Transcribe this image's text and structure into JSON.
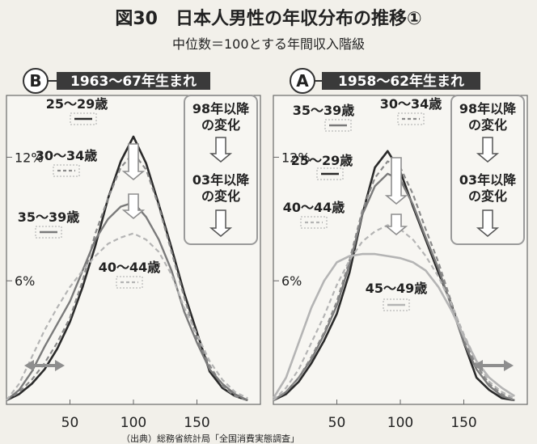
{
  "figure": {
    "title": "図30　日本人男性の年収分布の推移①",
    "subtitle": "中位数＝100とする年間収入階級",
    "footer": "（出典）総務省統計局「全国消費実態調査」"
  },
  "colors": {
    "background": "#f2f0ea",
    "dark_line": "#2a2a2a",
    "gray_line": "#7a7a7a",
    "dashed_line": "#8a8a8a",
    "light_line": "#b4b4b4",
    "badge": "#3a3a3a",
    "arrow_gray": "#8e8e8e"
  },
  "icons": [
    "badge-circle-b-icon",
    "badge-circle-a-icon",
    "down-arrow-icon",
    "double-arrow-icon",
    "legend-swatch-icon"
  ],
  "chart_data": [
    {
      "type": "line",
      "panel": "B",
      "cohort_label": "1963〜67年生まれ",
      "xlim": [
        0,
        200
      ],
      "ylim": [
        0,
        15
      ],
      "xticks": [
        50,
        100,
        150
      ],
      "yticks": [
        {
          "value": 12,
          "label": "12%"
        },
        {
          "value": 6,
          "label": "6%"
        }
      ],
      "legend_box": {
        "line1": "98年以降",
        "line2": "の変化",
        "line3": "03年以降",
        "line4": "の変化"
      },
      "series": [
        {
          "name": "25〜29歳",
          "style": "solid-dark",
          "x": [
            0,
            10,
            20,
            30,
            40,
            50,
            60,
            70,
            80,
            90,
            100,
            110,
            120,
            130,
            140,
            150,
            160,
            170,
            180,
            190
          ],
          "y": [
            0.2,
            0.5,
            1.0,
            1.7,
            2.7,
            4.0,
            5.7,
            7.7,
            10.0,
            11.8,
            13.0,
            11.7,
            9.7,
            7.6,
            5.4,
            3.5,
            1.6,
            0.8,
            0.4,
            0.2
          ]
        },
        {
          "name": "30〜34歳",
          "style": "dashed",
          "x": [
            0,
            10,
            20,
            30,
            40,
            50,
            60,
            70,
            80,
            90,
            100,
            110,
            120,
            130,
            140,
            150,
            160,
            170,
            180,
            190
          ],
          "y": [
            0.2,
            0.6,
            1.2,
            2.0,
            3.0,
            4.2,
            6.0,
            8.3,
            10.0,
            11.5,
            12.2,
            11.4,
            9.6,
            7.4,
            5.2,
            3.2,
            1.9,
            0.9,
            0.4,
            0.2
          ]
        },
        {
          "name": "35〜39歳",
          "style": "solid-gray",
          "x": [
            0,
            10,
            20,
            30,
            40,
            50,
            60,
            70,
            80,
            90,
            100,
            110,
            120,
            130,
            140,
            150,
            160,
            170,
            180,
            190
          ],
          "y": [
            0.2,
            0.7,
            1.6,
            2.8,
            3.9,
            5.0,
            6.5,
            8.0,
            9.0,
            9.6,
            9.8,
            9.1,
            8.0,
            6.5,
            4.5,
            3.0,
            1.7,
            1.0,
            0.5,
            0.2
          ]
        },
        {
          "name": "40〜44歳",
          "style": "dashed-light",
          "x": [
            0,
            10,
            20,
            30,
            40,
            50,
            60,
            70,
            80,
            90,
            100,
            110,
            120,
            130,
            140,
            150,
            160,
            170,
            180,
            190
          ],
          "y": [
            0.2,
            1.0,
            2.3,
            3.6,
            4.7,
            5.7,
            6.5,
            7.2,
            7.8,
            8.1,
            8.3,
            8.0,
            7.4,
            6.3,
            4.7,
            3.4,
            2.1,
            1.2,
            0.6,
            0.3
          ]
        }
      ]
    },
    {
      "type": "line",
      "panel": "A",
      "cohort_label": "1958〜62年生まれ",
      "xlim": [
        0,
        200
      ],
      "ylim": [
        0,
        15
      ],
      "xticks": [
        50,
        100,
        150
      ],
      "yticks": [
        {
          "value": 12,
          "label": "12%"
        },
        {
          "value": 6,
          "label": "6%"
        }
      ],
      "legend_box": {
        "line1": "98年以降",
        "line2": "の変化",
        "line3": "03年以降",
        "line4": "の変化"
      },
      "series": [
        {
          "name": "25〜29歳",
          "style": "solid-dark",
          "x": [
            0,
            10,
            20,
            30,
            40,
            50,
            60,
            70,
            80,
            90,
            100,
            110,
            120,
            130,
            140,
            150,
            160,
            170,
            180,
            190
          ],
          "y": [
            0.2,
            0.5,
            1.1,
            2.0,
            3.1,
            4.4,
            6.4,
            9.2,
            11.5,
            12.3,
            11.3,
            9.6,
            8.0,
            6.4,
            4.9,
            3.0,
            1.3,
            0.7,
            0.3,
            0.2
          ]
        },
        {
          "name": "35〜39歳",
          "style": "solid-gray",
          "x": [
            0,
            10,
            20,
            30,
            40,
            50,
            60,
            70,
            80,
            90,
            100,
            110,
            120,
            130,
            140,
            150,
            160,
            170,
            180,
            190
          ],
          "y": [
            0.2,
            0.6,
            1.3,
            2.2,
            3.4,
            4.8,
            6.8,
            9.2,
            10.6,
            11.2,
            10.9,
            9.7,
            8.1,
            6.6,
            4.8,
            3.0,
            1.7,
            0.9,
            0.4,
            0.2
          ]
        },
        {
          "name": "30〜34歳",
          "style": "dashed",
          "x": [
            0,
            10,
            20,
            30,
            40,
            50,
            60,
            70,
            80,
            90,
            100,
            110,
            120,
            130,
            140,
            150,
            160,
            170,
            180,
            190
          ],
          "y": [
            0.2,
            0.6,
            1.3,
            2.3,
            3.5,
            5.0,
            7.0,
            9.4,
            11.0,
            11.8,
            11.5,
            10.2,
            8.5,
            6.9,
            5.0,
            3.2,
            1.9,
            1.0,
            0.5,
            0.2
          ]
        },
        {
          "name": "40〜44歳",
          "style": "dashed-light",
          "x": [
            0,
            10,
            20,
            30,
            40,
            50,
            60,
            70,
            80,
            90,
            100,
            110,
            120,
            130,
            140,
            150,
            160,
            170,
            180,
            190
          ],
          "y": [
            0.2,
            0.8,
            1.7,
            3.0,
            4.3,
            5.8,
            7.0,
            7.9,
            8.4,
            8.7,
            8.5,
            8.0,
            7.2,
            6.2,
            4.9,
            3.4,
            2.1,
            1.1,
            0.6,
            0.3
          ]
        },
        {
          "name": "45〜49歳",
          "style": "solid-light",
          "x": [
            0,
            10,
            20,
            30,
            40,
            50,
            60,
            70,
            80,
            90,
            100,
            110,
            120,
            130,
            140,
            150,
            160,
            170,
            180,
            190
          ],
          "y": [
            0.3,
            1.3,
            3.0,
            4.7,
            6.0,
            6.9,
            7.2,
            7.3,
            7.3,
            7.2,
            7.1,
            6.9,
            6.5,
            5.7,
            4.6,
            3.3,
            2.1,
            1.3,
            0.8,
            0.4
          ]
        }
      ]
    }
  ]
}
